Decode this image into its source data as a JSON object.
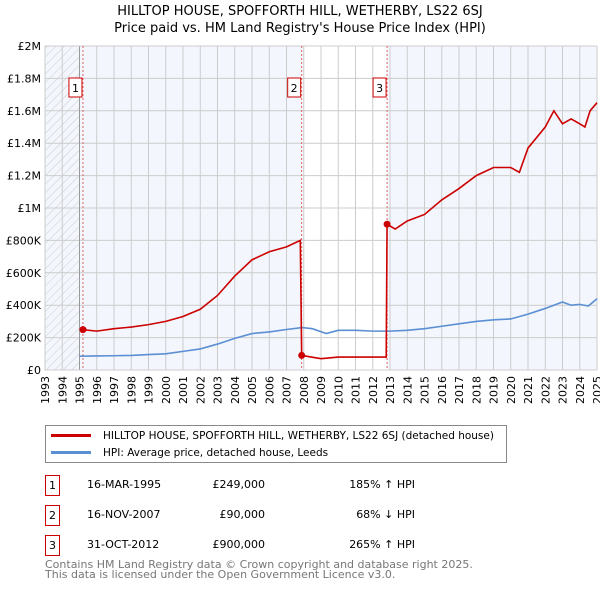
{
  "chart_data": {
    "type": "line",
    "title": "HILLTOP HOUSE, SPOFFORTH HILL, WETHERBY, LS22 6SJ",
    "subtitle": "Price paid vs. HM Land Registry's House Price Index (HPI)",
    "xlim": [
      1993,
      2025
    ],
    "ylim": [
      0,
      2000000
    ],
    "x_ticks": [
      "1993",
      "1994",
      "1995",
      "1996",
      "1997",
      "1998",
      "1999",
      "2000",
      "2001",
      "2002",
      "2003",
      "2004",
      "2005",
      "2006",
      "2007",
      "2008",
      "2009",
      "2010",
      "2011",
      "2012",
      "2013",
      "2014",
      "2015",
      "2016",
      "2017",
      "2018",
      "2019",
      "2020",
      "2021",
      "2022",
      "2023",
      "2024",
      "2025"
    ],
    "y_ticks": [
      {
        "v": 0,
        "label": "£0"
      },
      {
        "v": 200000,
        "label": "£200K"
      },
      {
        "v": 400000,
        "label": "£400K"
      },
      {
        "v": 600000,
        "label": "£600K"
      },
      {
        "v": 800000,
        "label": "£800K"
      },
      {
        "v": 1000000,
        "label": "£1M"
      },
      {
        "v": 1200000,
        "label": "£1.2M"
      },
      {
        "v": 1400000,
        "label": "£1.4M"
      },
      {
        "v": 1600000,
        "label": "£1.6M"
      },
      {
        "v": 1800000,
        "label": "£1.8M"
      },
      {
        "v": 2000000,
        "label": "£2M"
      }
    ],
    "grid": true,
    "series": [
      {
        "name": "HILLTOP HOUSE, SPOFFORTH HILL, WETHERBY, LS22 6SJ (detached house)",
        "color": "#cc0000",
        "x": [
          1995.2,
          1996,
          1997,
          1998,
          1999,
          2000,
          2001,
          2002,
          2003,
          2004,
          2005,
          2006,
          2007,
          2007.8,
          2007.88,
          2009,
          2010,
          2011,
          2012.78,
          2012.83,
          2013.3,
          2014,
          2015,
          2016,
          2017,
          2018,
          2019,
          2020,
          2020.5,
          2021,
          2022,
          2022.5,
          2023,
          2023.5,
          2024,
          2024.3,
          2024.6,
          2025
        ],
        "y": [
          249000,
          240000,
          255000,
          265000,
          280000,
          300000,
          330000,
          375000,
          460000,
          580000,
          680000,
          730000,
          760000,
          800000,
          90000,
          70000,
          80000,
          80000,
          80000,
          900000,
          870000,
          920000,
          960000,
          1050000,
          1120000,
          1200000,
          1250000,
          1250000,
          1220000,
          1370000,
          1500000,
          1600000,
          1520000,
          1550000,
          1520000,
          1500000,
          1600000,
          1650000
        ]
      },
      {
        "name": "HPI: Average price, detached house, Leeds",
        "color": "#5b8fd4",
        "x": [
          1995,
          1996,
          1997,
          1998,
          1999,
          2000,
          2001,
          2002,
          2003,
          2004,
          2005,
          2006,
          2007,
          2007.9,
          2008.5,
          2009.3,
          2010,
          2011,
          2012,
          2013,
          2014,
          2015,
          2016,
          2017,
          2018,
          2019,
          2020,
          2021,
          2022,
          2023,
          2023.5,
          2024,
          2024.5,
          2025
        ],
        "y": [
          85000,
          87000,
          88000,
          90000,
          95000,
          100000,
          115000,
          130000,
          160000,
          195000,
          225000,
          235000,
          250000,
          262000,
          255000,
          225000,
          245000,
          245000,
          240000,
          240000,
          245000,
          255000,
          270000,
          285000,
          300000,
          310000,
          315000,
          345000,
          380000,
          420000,
          400000,
          405000,
          395000,
          440000
        ]
      }
    ],
    "sales": [
      {
        "n": "1",
        "x": 1995.2,
        "date": "16-MAR-1995",
        "price": "£249,000",
        "value": 249000,
        "hpi": "185% ↑ HPI"
      },
      {
        "n": "2",
        "x": 2007.88,
        "date": "16-NOV-2007",
        "price": "£90,000",
        "value": 90000,
        "hpi": "68% ↓ HPI"
      },
      {
        "n": "3",
        "x": 2012.83,
        "date": "31-OCT-2012",
        "price": "£900,000",
        "value": 900000,
        "hpi": "265% ↑ HPI"
      }
    ]
  },
  "legend": {
    "property": "HILLTOP HOUSE, SPOFFORTH HILL, WETHERBY, LS22 6SJ (detached house)",
    "hpi": "HPI: Average price, detached house, Leeds"
  },
  "footer": {
    "line1": "Contains HM Land Registry data © Crown copyright and database right 2025.",
    "line2": "This data is licensed under the Open Government Licence v3.0."
  }
}
